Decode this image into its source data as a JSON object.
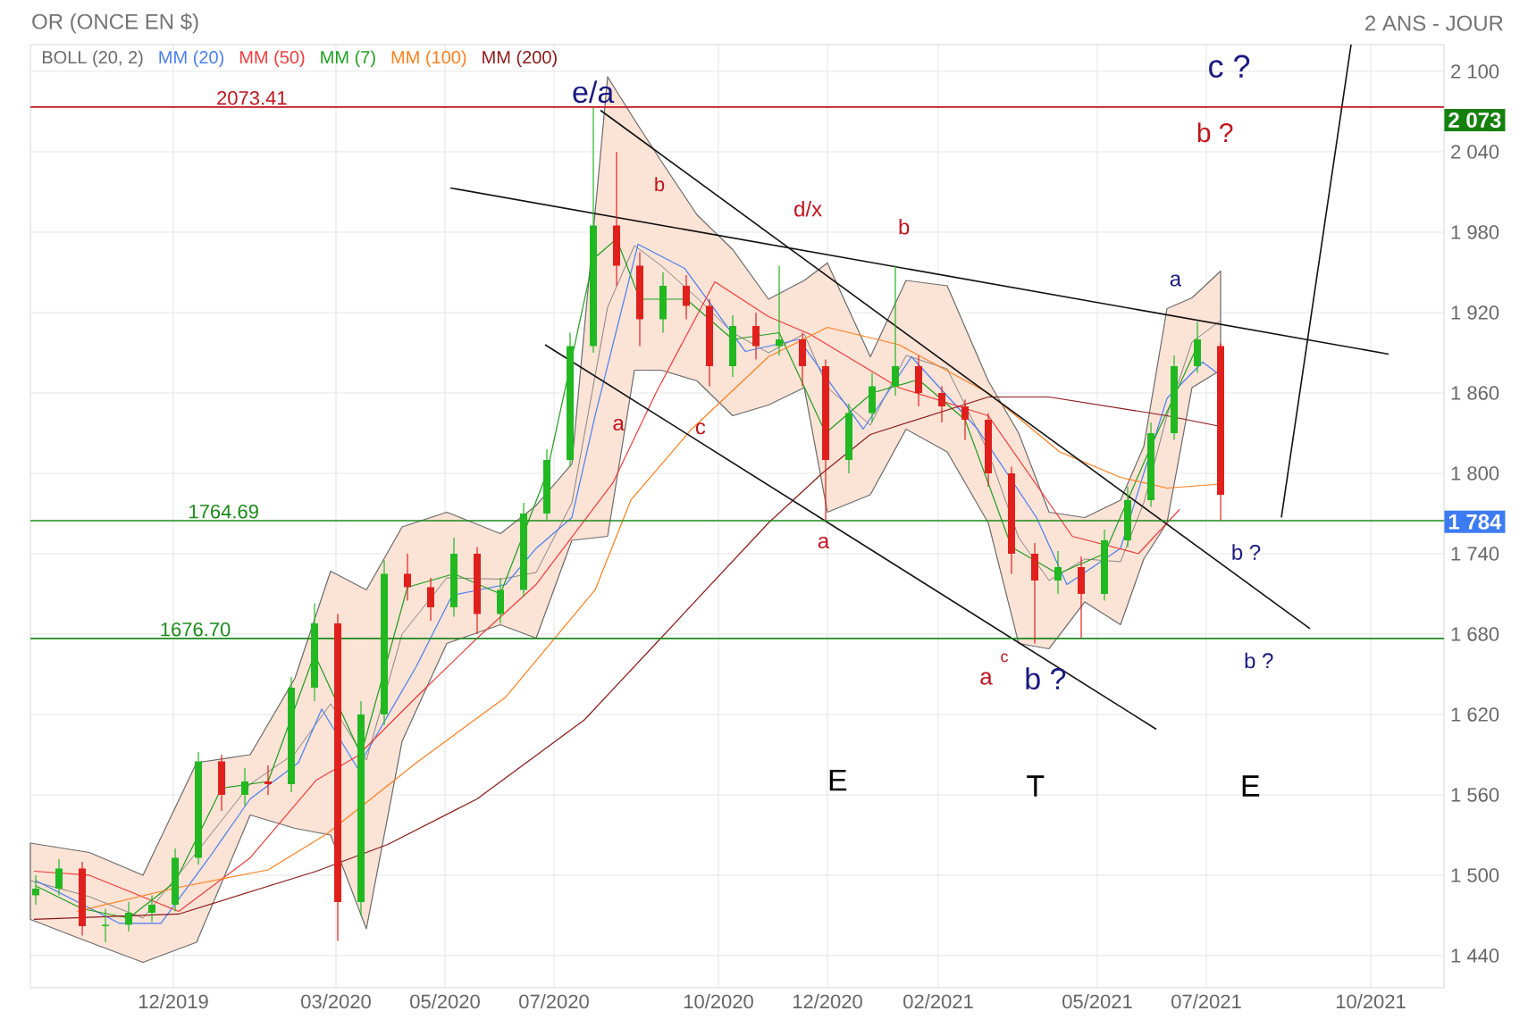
{
  "chart_data": {
    "type": "candlestick",
    "title": "OR (ONCE EN $)",
    "subtitle": "2 ANS - JOUR",
    "x": [
      "2019-09-15",
      "2019-09-28",
      "2019-10-11",
      "2019-10-24",
      "2019-11-06",
      "2019-11-19",
      "2019-12-02",
      "2019-12-15",
      "2019-12-28",
      "2020-01-10",
      "2020-01-23",
      "2020-02-05",
      "2020-02-18",
      "2020-03-02",
      "2020-03-15",
      "2020-03-28",
      "2020-04-10",
      "2020-04-23",
      "2020-05-06",
      "2020-05-19",
      "2020-06-01",
      "2020-06-14",
      "2020-06-27",
      "2020-07-10",
      "2020-07-23",
      "2020-08-05",
      "2020-08-18",
      "2020-08-31",
      "2020-09-13",
      "2020-09-26",
      "2020-10-09",
      "2020-10-22",
      "2020-11-04",
      "2020-11-17",
      "2020-11-30",
      "2020-12-13",
      "2020-12-26",
      "2021-01-08",
      "2021-01-21",
      "2021-02-03",
      "2021-02-16",
      "2021-03-01",
      "2021-03-14",
      "2021-03-27",
      "2021-04-09",
      "2021-04-22",
      "2021-05-05",
      "2021-05-18",
      "2021-05-31",
      "2021-06-13",
      "2021-06-26",
      "2021-07-09"
    ],
    "ohlc": [
      [
        1485,
        1500,
        1478,
        1490
      ],
      [
        1490,
        1512,
        1485,
        1505
      ],
      [
        1505,
        1510,
        1455,
        1462
      ],
      [
        1462,
        1475,
        1450,
        1463
      ],
      [
        1463,
        1480,
        1458,
        1472
      ],
      [
        1472,
        1485,
        1465,
        1478
      ],
      [
        1478,
        1520,
        1473,
        1513
      ],
      [
        1513,
        1592,
        1508,
        1585
      ],
      [
        1585,
        1590,
        1548,
        1560
      ],
      [
        1560,
        1580,
        1552,
        1570
      ],
      [
        1570,
        1582,
        1560,
        1568
      ],
      [
        1568,
        1648,
        1562,
        1640
      ],
      [
        1640,
        1703,
        1630,
        1688
      ],
      [
        1688,
        1695,
        1451,
        1480
      ],
      [
        1480,
        1630,
        1470,
        1620
      ],
      [
        1620,
        1735,
        1612,
        1725
      ],
      [
        1725,
        1740,
        1705,
        1715
      ],
      [
        1715,
        1722,
        1690,
        1700
      ],
      [
        1700,
        1752,
        1693,
        1740
      ],
      [
        1740,
        1745,
        1680,
        1695
      ],
      [
        1695,
        1722,
        1688,
        1713
      ],
      [
        1713,
        1778,
        1708,
        1770
      ],
      [
        1770,
        1818,
        1765,
        1810
      ],
      [
        1810,
        1905,
        1805,
        1895
      ],
      [
        1895,
        2073,
        1890,
        1985
      ],
      [
        1985,
        2040,
        1940,
        1955
      ],
      [
        1955,
        1965,
        1895,
        1915
      ],
      [
        1915,
        1950,
        1905,
        1940
      ],
      [
        1940,
        1948,
        1915,
        1925
      ],
      [
        1925,
        1930,
        1865,
        1880
      ],
      [
        1880,
        1918,
        1872,
        1910
      ],
      [
        1910,
        1920,
        1885,
        1895
      ],
      [
        1895,
        1955,
        1888,
        1900
      ],
      [
        1900,
        1905,
        1865,
        1880
      ],
      [
        1880,
        1885,
        1765,
        1810
      ],
      [
        1810,
        1852,
        1800,
        1845
      ],
      [
        1845,
        1875,
        1838,
        1865
      ],
      [
        1865,
        1955,
        1858,
        1880
      ],
      [
        1880,
        1888,
        1850,
        1860
      ],
      [
        1860,
        1865,
        1838,
        1850
      ],
      [
        1850,
        1855,
        1825,
        1840
      ],
      [
        1840,
        1845,
        1790,
        1800
      ],
      [
        1800,
        1805,
        1725,
        1740
      ],
      [
        1740,
        1748,
        1673,
        1720
      ],
      [
        1720,
        1742,
        1710,
        1730
      ],
      [
        1730,
        1738,
        1677,
        1710
      ],
      [
        1710,
        1758,
        1705,
        1750
      ],
      [
        1750,
        1790,
        1745,
        1780
      ],
      [
        1780,
        1838,
        1775,
        1830
      ],
      [
        1830,
        1888,
        1825,
        1880
      ],
      [
        1880,
        1913,
        1875,
        1900
      ],
      [
        1895,
        1897,
        1765,
        1784
      ]
    ],
    "colors": [
      "#21b821",
      "#21b821",
      "#e0201c",
      "#21b821",
      "#21b821",
      "#21b821",
      "#21b821",
      "#21b821",
      "#e0201c",
      "#21b821",
      "#e0201c",
      "#21b821",
      "#21b821",
      "#e0201c",
      "#21b821",
      "#21b821",
      "#e0201c",
      "#e0201c",
      "#21b821",
      "#e0201c",
      "#21b821",
      "#21b821",
      "#21b821",
      "#21b821",
      "#21b821",
      "#e0201c",
      "#e0201c",
      "#21b821",
      "#e0201c",
      "#e0201c",
      "#21b821",
      "#e0201c",
      "#21b821",
      "#e0201c",
      "#e0201c",
      "#21b821",
      "#21b821",
      "#21b821",
      "#e0201c",
      "#e0201c",
      "#e0201c",
      "#e0201c",
      "#e0201c",
      "#e0201c",
      "#21b821",
      "#e0201c",
      "#21b821",
      "#21b821",
      "#21b821",
      "#21b821",
      "#21b821",
      "#e0201c"
    ],
    "series": [
      {
        "name": "BOLL (20, 2)",
        "type": "line",
        "color": "#6b6b6b",
        "x": [
          "2019-09-12",
          "2019-10-15",
          "2019-11-14",
          "2019-12-14",
          "2020-01-13",
          "2020-02-07",
          "2020-02-27",
          "2020-03-18",
          "2020-04-07",
          "2020-05-02",
          "2020-06-01",
          "2020-06-21",
          "2020-07-11",
          "2020-07-31",
          "2020-08-15",
          "2020-08-30",
          "2020-09-19",
          "2020-10-09",
          "2020-10-29",
          "2020-11-18",
          "2020-12-01",
          "2020-12-25",
          "2021-01-14",
          "2021-02-06",
          "2021-03-01",
          "2021-03-18",
          "2021-04-04",
          "2021-04-24",
          "2021-05-14",
          "2021-05-27",
          "2021-06-09",
          "2021-06-23",
          "2021-07-09"
        ],
        "values": [
          1496,
          1484,
          1468,
          1517,
          1568,
          1591,
          1628,
          1586,
          1680,
          1722,
          1721,
          1726,
          1778,
          1924,
          1970,
          1955,
          1931,
          1905,
          1890,
          1904,
          1864,
          1836,
          1888,
          1878,
          1816,
          1752,
          1720,
          1736,
          1734,
          1778,
          1843,
          1898,
          1914
        ],
        "upper": [
          1524,
          1517,
          1500,
          1584,
          1590,
          1647,
          1727,
          1713,
          1760,
          1771,
          1755,
          1776,
          1807,
          2096,
          2064,
          2033,
          1993,
          1967,
          1930,
          1944,
          1957,
          1887,
          1944,
          1940,
          1869,
          1830,
          1771,
          1767,
          1780,
          1820,
          1923,
          1931,
          1951
        ],
        "lower": [
          1467,
          1450,
          1435,
          1450,
          1545,
          1535,
          1530,
          1460,
          1600,
          1673,
          1687,
          1677,
          1750,
          1753,
          1877,
          1877,
          1869,
          1843,
          1851,
          1864,
          1771,
          1784,
          1833,
          1816,
          1763,
          1673,
          1669,
          1704,
          1687,
          1736,
          1763,
          1864,
          1877
        ]
      },
      {
        "name": "MM (20)",
        "type": "line",
        "color": "#4a7ef0",
        "x": [
          "2019-09-15",
          "2019-11-01",
          "2019-11-24",
          "2019-12-21",
          "2020-01-13",
          "2020-02-09",
          "2020-02-22",
          "2020-03-13",
          "2020-04-15",
          "2020-05-05",
          "2020-06-04",
          "2020-06-21",
          "2020-07-11",
          "2020-07-24",
          "2020-08-17",
          "2020-09-12",
          "2020-10-16",
          "2020-11-15",
          "2020-12-21",
          "2021-01-17",
          "2021-02-23",
          "2021-03-28",
          "2021-04-14",
          "2021-05-14",
          "2021-06-09",
          "2021-06-29",
          "2021-07-09"
        ],
        "values": [
          1496,
          1464,
          1464,
          1513,
          1557,
          1584,
          1624,
          1580,
          1656,
          1709,
          1717,
          1744,
          1767,
          1843,
          1971,
          1953,
          1891,
          1900,
          1833,
          1887,
          1833,
          1767,
          1717,
          1744,
          1856,
          1883,
          1873
        ]
      },
      {
        "name": "MM (50)",
        "type": "line",
        "color": "#f03c3c",
        "x": [
          "2019-09-14",
          "2019-10-15",
          "2019-12-04",
          "2020-01-13",
          "2020-02-19",
          "2020-03-13",
          "2020-04-15",
          "2020-05-19",
          "2020-06-21",
          "2020-08-03",
          "2020-08-27",
          "2020-09-29",
          "2020-10-29",
          "2020-11-21",
          "2021-01-10",
          "2021-03-01",
          "2021-04-17",
          "2021-05-24",
          "2021-06-16"
        ],
        "values": [
          1503,
          1500,
          1473,
          1513,
          1571,
          1589,
          1633,
          1677,
          1717,
          1793,
          1860,
          1943,
          1917,
          1904,
          1864,
          1843,
          1753,
          1740,
          1773
        ]
      },
      {
        "name": "MM (7)",
        "type": "line",
        "color": "#1e9e1e",
        "x": [
          "2019-09-15",
          "2019-10-11",
          "2019-11-06",
          "2019-12-02",
          "2019-12-28",
          "2020-01-23",
          "2020-02-18",
          "2020-03-15",
          "2020-04-10",
          "2020-05-06",
          "2020-06-01",
          "2020-06-27",
          "2020-07-23",
          "2020-08-05",
          "2020-08-18",
          "2020-09-13",
          "2020-10-09",
          "2020-11-04",
          "2020-11-30",
          "2020-12-26",
          "2021-01-21",
          "2021-02-16",
          "2021-03-14",
          "2021-04-09",
          "2021-05-05",
          "2021-05-31",
          "2021-06-26"
        ],
        "values": [
          1492,
          1475,
          1468,
          1495,
          1565,
          1570,
          1665,
          1590,
          1715,
          1725,
          1710,
          1800,
          1960,
          1975,
          1930,
          1930,
          1900,
          1905,
          1830,
          1860,
          1870,
          1840,
          1745,
          1725,
          1740,
          1820,
          1895
        ]
      },
      {
        "name": "MM (100)",
        "type": "line",
        "color": "#ff7f1e",
        "x": [
          "2019-10-08",
          "2019-12-04",
          "2020-01-23",
          "2020-02-25",
          "2020-04-15",
          "2020-06-04",
          "2020-07-24",
          "2020-08-13",
          "2020-09-16",
          "2020-10-29",
          "2020-12-01",
          "2021-01-10",
          "2021-03-01",
          "2021-04-10",
          "2021-05-14",
          "2021-06-09",
          "2021-07-09"
        ],
        "values": [
          1473,
          1491,
          1504,
          1531,
          1584,
          1633,
          1713,
          1780,
          1833,
          1887,
          1909,
          1896,
          1860,
          1816,
          1797,
          1789,
          1792
        ]
      },
      {
        "name": "MM (200)",
        "type": "line",
        "color": "#8b1a1a",
        "x": [
          "2019-09-14",
          "2019-12-04",
          "2020-02-19",
          "2020-03-30",
          "2020-05-19",
          "2020-07-18",
          "2020-08-27",
          "2020-10-29",
          "2020-11-28",
          "2020-12-25",
          "2021-03-01",
          "2021-04-04",
          "2021-06-09",
          "2021-07-09"
        ],
        "values": [
          1467,
          1471,
          1503,
          1523,
          1557,
          1616,
          1673,
          1763,
          1800,
          1829,
          1857,
          1857,
          1843,
          1835
        ]
      },
      {
        "type": "line",
        "color": "#111111",
        "x": [
          "2020-05-04",
          "2021-10-11"
        ],
        "values": [
          2013,
          1889
        ]
      },
      {
        "type": "line",
        "color": "#111111",
        "x": [
          "2020-07-27",
          "2021-08-28"
        ],
        "values": [
          2071,
          1684
        ]
      },
      {
        "type": "line",
        "color": "#111111",
        "x": [
          "2020-06-26",
          "2021-06-03"
        ],
        "values": [
          1896,
          1609
        ]
      },
      {
        "type": "line",
        "color": "#111111",
        "x": [
          "2021-08-12",
          "2021-09-20"
        ],
        "values": [
          1767,
          2120
        ]
      }
    ],
    "ref_lines": [
      {
        "axis": "y",
        "value": 2073.41,
        "label": "2073.41",
        "color": "#c0141c"
      },
      {
        "axis": "y",
        "value": 1764.69,
        "label": "1764.69",
        "color": "#1a8a1a"
      },
      {
        "axis": "y",
        "value": 1676.7,
        "label": "1676.70",
        "color": "#1a8a1a"
      }
    ],
    "annotations": [
      "e/a",
      "b",
      "d/x",
      "b",
      "a",
      "c ?",
      "b ?",
      "a",
      "c",
      "a",
      "b ?",
      "b ?",
      "a",
      "c",
      "b ?",
      "E",
      "T",
      "E",
      "2 073",
      "1 784"
    ],
    "xlim": [
      "2019-09-12",
      "2021-11-11"
    ],
    "ylim": [
      1416,
      2120
    ],
    "xticks": [
      {
        "value": "2019-12-01",
        "label": "12/2019"
      },
      {
        "value": "2020-03-01",
        "label": "03/2020"
      },
      {
        "value": "2020-05-01",
        "label": "05/2020"
      },
      {
        "value": "2020-07-01",
        "label": "07/2020"
      },
      {
        "value": "2020-10-01",
        "label": "10/2020"
      },
      {
        "value": "2020-12-01",
        "label": "12/2020"
      },
      {
        "value": "2021-02-01",
        "label": "02/2021"
      },
      {
        "value": "2021-05-01",
        "label": "05/2021"
      },
      {
        "value": "2021-07-01",
        "label": "07/2021"
      },
      {
        "value": "2021-10-01",
        "label": "10/2021"
      }
    ],
    "yticks": [
      {
        "value": 1440,
        "label": "1 440"
      },
      {
        "value": 1500,
        "label": "1 500"
      },
      {
        "value": 1560,
        "label": "1 560"
      },
      {
        "value": 1620,
        "label": "1 620"
      },
      {
        "value": 1680,
        "label": "1 680"
      },
      {
        "value": 1740,
        "label": "1 740"
      },
      {
        "value": 1800,
        "label": "1 800"
      },
      {
        "value": 1860,
        "label": "1 860"
      },
      {
        "value": 1920,
        "label": "1 920"
      },
      {
        "value": 1980,
        "label": "1 980"
      },
      {
        "value": 2040,
        "label": "2 040"
      },
      {
        "value": 2100,
        "label": "2 100"
      }
    ],
    "grid": true,
    "legend": "top left"
  }
}
